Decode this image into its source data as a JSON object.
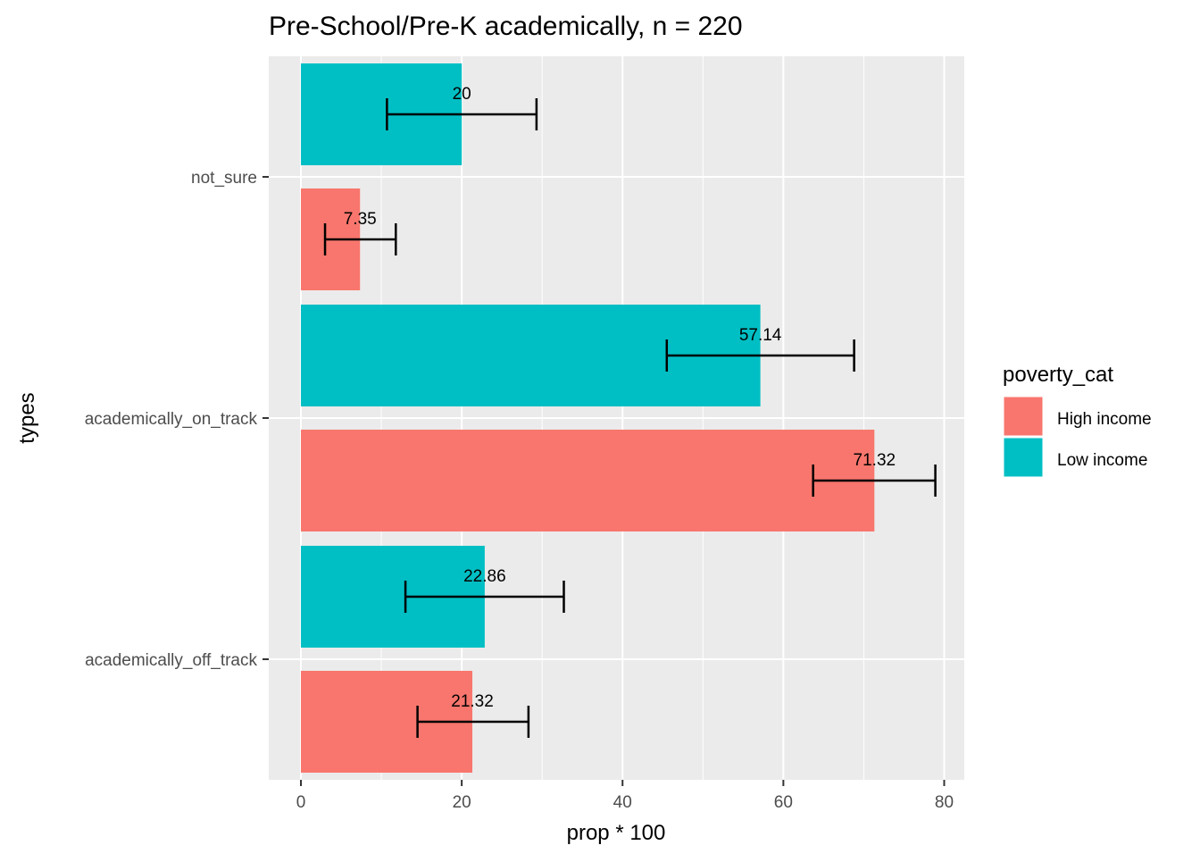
{
  "chart_data": {
    "type": "bar",
    "orientation": "horizontal",
    "title": "Pre-School/Pre-K academically, n = 220",
    "xlabel": "prop * 100",
    "ylabel": "types",
    "xlim": [
      -4.0,
      82.5
    ],
    "x_ticks": [
      0,
      20,
      40,
      60,
      80
    ],
    "x_tick_labels": [
      "0",
      "20",
      "40",
      "60",
      "80"
    ],
    "categories": [
      "academically_off_track",
      "academically_on_track",
      "not_sure"
    ],
    "grid": true,
    "legend": {
      "title": "poverty_cat",
      "position": "right"
    },
    "series": [
      {
        "name": "High income",
        "color": "#F8766D",
        "values": [
          21.32,
          71.32,
          7.35
        ],
        "labels": [
          "21.32",
          "71.32",
          "7.35"
        ],
        "error_low": [
          14.5,
          63.7,
          3.0
        ],
        "error_high": [
          28.3,
          78.9,
          11.8
        ]
      },
      {
        "name": "Low income",
        "color": "#00BFC4",
        "values": [
          22.86,
          57.14,
          20
        ],
        "labels": [
          "22.86",
          "57.14",
          "20"
        ],
        "error_low": [
          13.0,
          45.5,
          10.7
        ],
        "error_high": [
          32.7,
          68.8,
          29.3
        ]
      }
    ]
  }
}
